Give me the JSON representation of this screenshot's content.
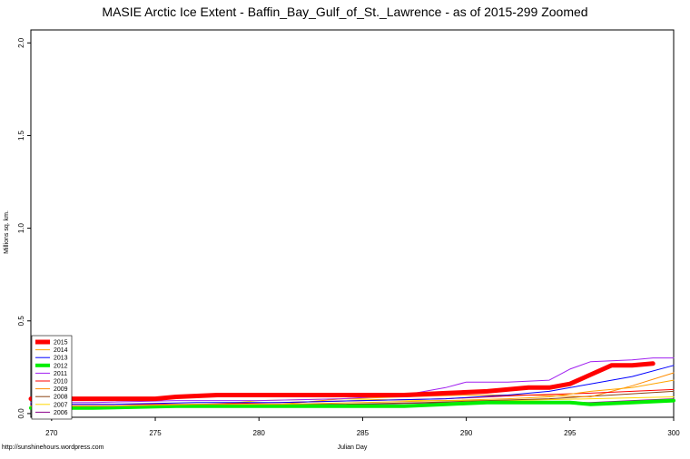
{
  "chart_data": {
    "type": "line",
    "title": "MASIE Arctic Ice Extent - Baffin_Bay_Gulf_of_St._Lawrence - as of 2015-299 Zoomed",
    "xlabel": "Julian Day",
    "ylabel": "Millions sq. km.",
    "credit": "http://sunshinehours.wordpress.com",
    "xlim": [
      269,
      300
    ],
    "ylim": [
      -0.02,
      2.07
    ],
    "xticks": [
      "270",
      "275",
      "280",
      "285",
      "290",
      "295",
      "300"
    ],
    "yticks": [
      "0.0",
      "0.5",
      "1.0",
      "1.5",
      "2.0"
    ],
    "legend_position": "bottom-left",
    "series": [
      {
        "name": "2015",
        "color": "#ff0000",
        "width": 5,
        "x": [
          269,
          272,
          275,
          276,
          278,
          281,
          285,
          287,
          289,
          291,
          293,
          294,
          295,
          296,
          297,
          298,
          299
        ],
        "y": [
          0.08,
          0.08,
          0.08,
          0.09,
          0.1,
          0.1,
          0.1,
          0.1,
          0.11,
          0.12,
          0.14,
          0.14,
          0.16,
          0.21,
          0.26,
          0.26,
          0.27
        ]
      },
      {
        "name": "2014",
        "color": "#ffa500",
        "width": 1,
        "x": [
          269,
          273,
          277,
          281,
          285,
          289,
          292,
          294,
          296,
          298,
          300
        ],
        "y": [
          0.04,
          0.04,
          0.05,
          0.05,
          0.06,
          0.07,
          0.08,
          0.09,
          0.12,
          0.14,
          0.18
        ]
      },
      {
        "name": "2013",
        "color": "#0000ff",
        "width": 1,
        "x": [
          269,
          273,
          277,
          281,
          285,
          289,
          292,
          294,
          296,
          298,
          300
        ],
        "y": [
          0.05,
          0.05,
          0.06,
          0.06,
          0.07,
          0.08,
          0.1,
          0.12,
          0.16,
          0.2,
          0.26
        ]
      },
      {
        "name": "2012",
        "color": "#00ee00",
        "width": 4,
        "x": [
          269,
          272,
          276,
          280,
          284,
          287,
          289,
          291,
          293,
          295,
          296,
          298,
          300
        ],
        "y": [
          0.03,
          0.03,
          0.04,
          0.04,
          0.04,
          0.04,
          0.05,
          0.06,
          0.06,
          0.06,
          0.05,
          0.06,
          0.07
        ]
      },
      {
        "name": "2011",
        "color": "#a020f0",
        "width": 1,
        "x": [
          269,
          272,
          276,
          280,
          284,
          287,
          289,
          290,
          292,
          294,
          295,
          296,
          298,
          299,
          300
        ],
        "y": [
          0.06,
          0.06,
          0.07,
          0.07,
          0.08,
          0.1,
          0.14,
          0.17,
          0.17,
          0.18,
          0.24,
          0.28,
          0.29,
          0.3,
          0.3
        ]
      },
      {
        "name": "2010",
        "color": "#ff0000",
        "width": 1,
        "x": [
          269,
          273,
          277,
          281,
          285,
          289,
          293,
          296,
          298,
          300
        ],
        "y": [
          0.05,
          0.05,
          0.05,
          0.06,
          0.07,
          0.08,
          0.1,
          0.11,
          0.12,
          0.13
        ]
      },
      {
        "name": "2009",
        "color": "#ff8c00",
        "width": 1,
        "x": [
          269,
          273,
          277,
          281,
          284,
          287,
          290,
          293,
          296,
          298,
          300
        ],
        "y": [
          0.04,
          0.04,
          0.05,
          0.05,
          0.08,
          0.09,
          0.1,
          0.1,
          0.09,
          0.15,
          0.22
        ]
      },
      {
        "name": "2008",
        "color": "#8b4513",
        "width": 1,
        "x": [
          269,
          272,
          276,
          280,
          284,
          288,
          291,
          294,
          297,
          300
        ],
        "y": [
          0.03,
          0.03,
          0.04,
          0.05,
          0.05,
          0.06,
          0.07,
          0.08,
          0.1,
          0.12
        ]
      },
      {
        "name": "2007",
        "color": "#ffd700",
        "width": 1,
        "x": [
          269,
          273,
          277,
          280,
          284,
          288,
          292,
          296,
          300
        ],
        "y": [
          0.03,
          0.04,
          0.04,
          0.07,
          0.08,
          0.07,
          0.07,
          0.08,
          0.09
        ]
      },
      {
        "name": "2006",
        "color": "#8b008b",
        "width": 1,
        "x": [
          269,
          273,
          277,
          281,
          285,
          289,
          293,
          296,
          298,
          300
        ],
        "y": [
          0.04,
          0.04,
          0.04,
          0.05,
          0.05,
          0.06,
          0.06,
          0.06,
          0.07,
          0.08
        ]
      }
    ]
  }
}
